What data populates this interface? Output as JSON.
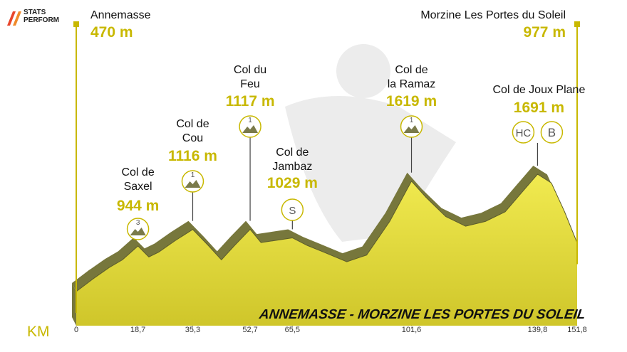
{
  "logo": "STATS\nPERFORM",
  "chart_data": {
    "type": "area",
    "title": "ANNEMASSE - MORZINE LES PORTES DU SOLEIL",
    "x_label": "KM",
    "x": [
      0,
      5,
      10,
      14,
      18.7,
      22,
      25,
      30,
      35.3,
      40,
      44,
      48,
      52.7,
      56,
      60,
      65.5,
      70,
      75,
      82,
      88,
      95,
      101.6,
      106,
      112,
      118,
      124,
      130,
      135,
      139.8,
      144,
      148,
      151.8
    ],
    "y": [
      470,
      600,
      720,
      800,
      944,
      830,
      880,
      1000,
      1116,
      950,
      800,
      950,
      1117,
      980,
      1000,
      1029,
      950,
      880,
      780,
      850,
      1200,
      1619,
      1450,
      1250,
      1150,
      1200,
      1300,
      1500,
      1691,
      1600,
      1300,
      977
    ],
    "point_names": [
      "Annemasse",
      null,
      null,
      null,
      "Col de\nSaxel",
      null,
      null,
      null,
      "Col de\nCou",
      null,
      null,
      null,
      "Col du\nFeu",
      null,
      null,
      "Col de\nJambaz",
      null,
      null,
      null,
      null,
      null,
      "Col de\nla Ramaz",
      null,
      null,
      null,
      null,
      null,
      null,
      "Col de Joux Plane",
      null,
      null,
      "Morzine Les Portes du Soleil"
    ],
    "value_labels": [
      "470 m",
      null,
      null,
      null,
      "944 m",
      null,
      null,
      null,
      "1116 m",
      null,
      null,
      null,
      "1117 m",
      null,
      null,
      "1029 m",
      null,
      null,
      null,
      null,
      null,
      "1619 m",
      null,
      null,
      null,
      null,
      null,
      null,
      "1691 m",
      null,
      null,
      "977 m"
    ],
    "climb_category": [
      null,
      null,
      null,
      null,
      "3",
      null,
      null,
      null,
      "1",
      null,
      null,
      null,
      "1",
      null,
      null,
      "S",
      null,
      null,
      null,
      null,
      null,
      "1",
      null,
      null,
      null,
      null,
      null,
      null,
      "HC",
      null,
      null,
      null
    ],
    "bonus": [
      null,
      null,
      null,
      null,
      null,
      null,
      null,
      null,
      null,
      null,
      null,
      null,
      null,
      null,
      null,
      null,
      null,
      null,
      null,
      null,
      null,
      null,
      null,
      null,
      null,
      null,
      null,
      null,
      "B",
      null,
      null,
      null
    ],
    "xlim": [
      0,
      151.8
    ],
    "xticks": [
      0,
      {
        "value": 18.7,
        "label": "18,7"
      },
      {
        "value": 35.3,
        "label": "35,3"
      },
      {
        "value": 52.7,
        "label": "52,7"
      },
      {
        "value": 65.5,
        "label": "65,5"
      },
      {
        "value": 101.6,
        "label": "101,6"
      },
      {
        "value": 139.8,
        "label": "139,8"
      },
      {
        "value": 151.8,
        "label": "151,8"
      }
    ],
    "color": "#e9e23f",
    "edge_color": "#77773c",
    "accent_color": "#c8b800"
  }
}
